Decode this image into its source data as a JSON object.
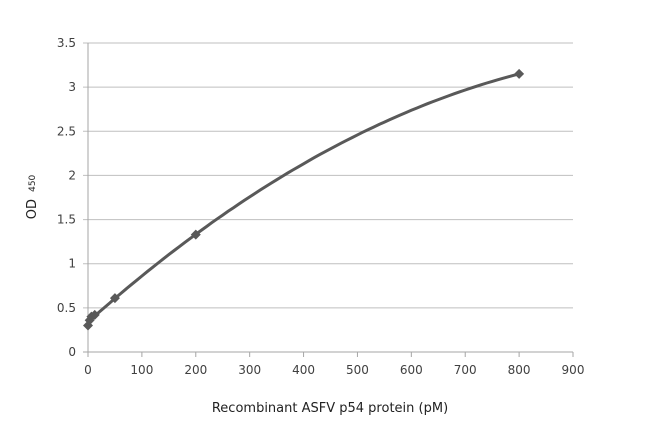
{
  "chart_data": {
    "type": "scatter",
    "title": "",
    "xlabel": "Recombinant ASFV p54 protein (pM)",
    "ylabel": "OD",
    "ylabel_subscript": "450",
    "xlim": [
      0,
      900
    ],
    "ylim": [
      0,
      3.5
    ],
    "x_ticks": [
      0,
      100,
      200,
      300,
      400,
      500,
      600,
      700,
      800,
      900
    ],
    "y_ticks": [
      0,
      0.5,
      1,
      1.5,
      2,
      2.5,
      3,
      3.5
    ],
    "grid": "horizontal",
    "legend": null,
    "marker": "diamond",
    "series": [
      {
        "name": "OD450",
        "x": [
          0,
          3.1,
          6.3,
          12.5,
          50,
          200,
          800
        ],
        "y": [
          0.3,
          0.36,
          0.4,
          0.42,
          0.61,
          1.33,
          3.15
        ],
        "color": "#595959",
        "trendline": "polynomial"
      }
    ]
  }
}
